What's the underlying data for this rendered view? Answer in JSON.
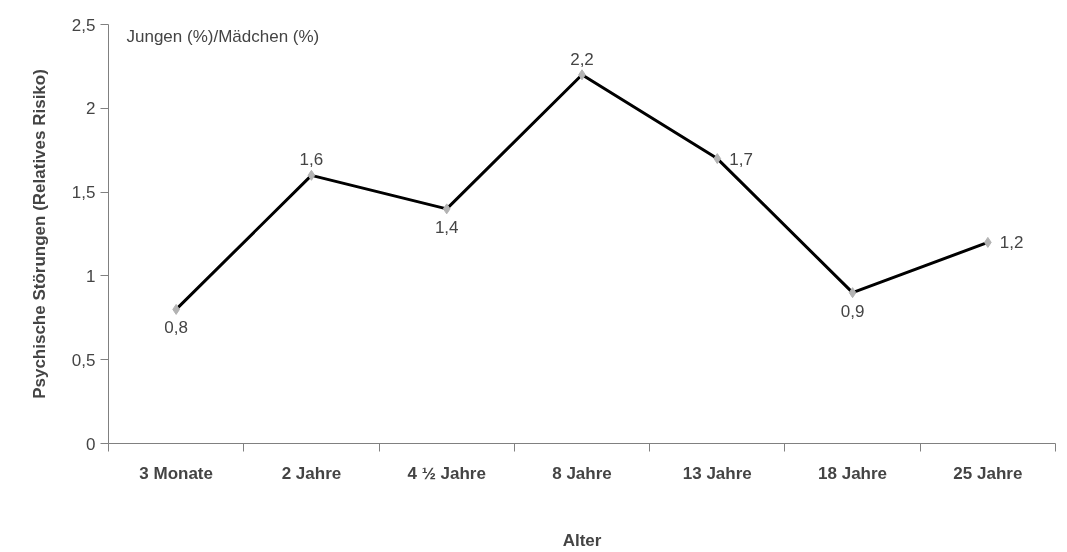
{
  "chart_data": {
    "type": "line",
    "xlabel": "Alter",
    "ylabel": "Psychische Störungen (Relatives Risiko)",
    "annotations": [
      "Jungen (%)/Mädchen (%)"
    ],
    "categories": [
      "3 Monate",
      "2 Jahre",
      "4 ½ Jahre",
      "8 Jahre",
      "13 Jahre",
      "18 Jahre",
      "25 Jahre"
    ],
    "series": [
      {
        "color": "#000000",
        "values": [
          0.8,
          1.6,
          1.4,
          2.2,
          1.7,
          0.9,
          1.2
        ],
        "value_labels": [
          "0,8",
          "1,6",
          "1,4",
          "2,2",
          "1,7",
          "0,9",
          "1,2"
        ]
      }
    ],
    "ylim": [
      0,
      2.5
    ],
    "yticks": [
      {
        "value": 0,
        "label": "0"
      },
      {
        "value": 0.5,
        "label": "0,5"
      },
      {
        "value": 1,
        "label": "1"
      },
      {
        "value": 1.5,
        "label": "1,5"
      },
      {
        "value": 2,
        "label": "2"
      },
      {
        "value": 2.5,
        "label": "2,5"
      }
    ],
    "grid": false,
    "marker": "diamond",
    "line_style": "solid"
  }
}
